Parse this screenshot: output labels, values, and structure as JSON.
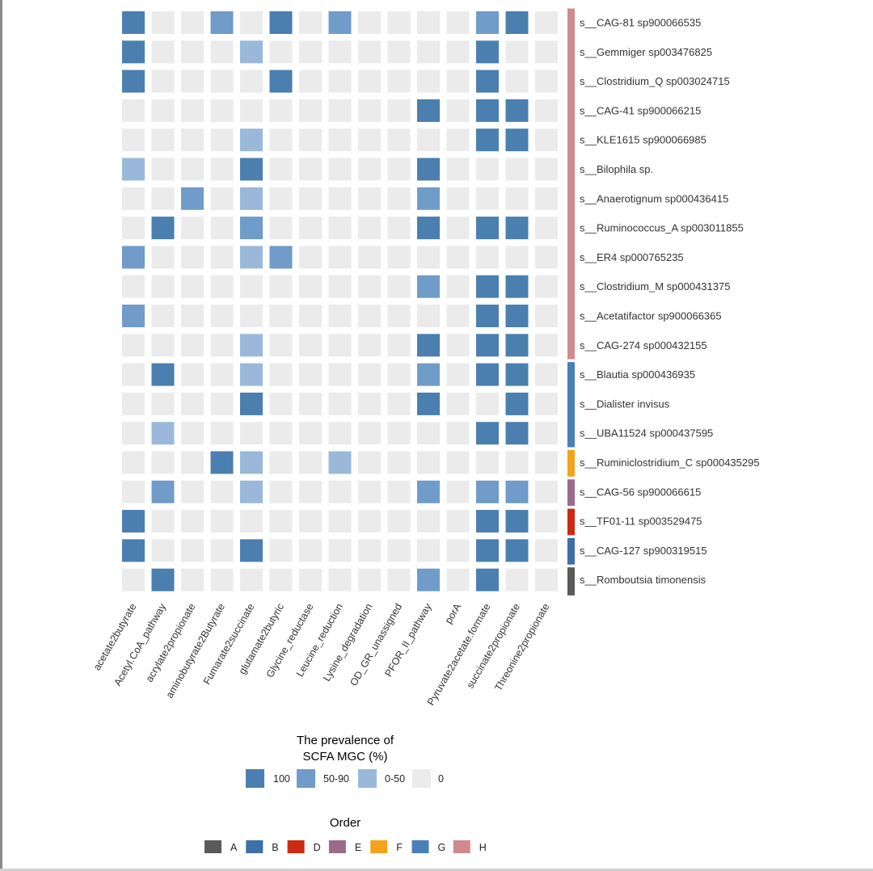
{
  "chart_data": {
    "type": "heatmap",
    "columns": [
      "acetate2butyrate",
      "Acetyl.CoA_pathway",
      "acrylate2propionate",
      "aminobutyrate2Butyrate",
      "Fumarate2succinate",
      "glutamate2butyric",
      "Glycine_reductase",
      "Leucine_reduction",
      "Lysine_degradation",
      "OD_GR_unassigned",
      "PFOR_II_pathway",
      "porA",
      "Pyruvate2acetate.formate",
      "succinate2propionate",
      "Threonine2propionate"
    ],
    "rows": [
      {
        "label": "s__CAG-81 sp900066535",
        "order": "H",
        "values": [
          3,
          0,
          0,
          2,
          0,
          3,
          0,
          2,
          0,
          0,
          0,
          0,
          2,
          3,
          0
        ]
      },
      {
        "label": "s__Gemmiger sp003476825",
        "order": "H",
        "values": [
          3,
          0,
          0,
          0,
          1,
          0,
          0,
          0,
          0,
          0,
          0,
          0,
          3,
          0,
          0
        ]
      },
      {
        "label": "s__Clostridium_Q sp003024715",
        "order": "H",
        "values": [
          3,
          0,
          0,
          0,
          0,
          3,
          0,
          0,
          0,
          0,
          0,
          0,
          3,
          0,
          0
        ]
      },
      {
        "label": "s__CAG-41 sp900066215",
        "order": "H",
        "values": [
          0,
          0,
          0,
          0,
          0,
          0,
          0,
          0,
          0,
          0,
          3,
          0,
          3,
          3,
          0
        ]
      },
      {
        "label": "s__KLE1615 sp900066985",
        "order": "H",
        "values": [
          0,
          0,
          0,
          0,
          1,
          0,
          0,
          0,
          0,
          0,
          0,
          0,
          3,
          3,
          0
        ]
      },
      {
        "label": "s__Bilophila sp.",
        "order": "H",
        "values": [
          1,
          0,
          0,
          0,
          3,
          0,
          0,
          0,
          0,
          0,
          3,
          0,
          0,
          0,
          0
        ]
      },
      {
        "label": "s__Anaerotignum sp000436415",
        "order": "H",
        "values": [
          0,
          0,
          2,
          0,
          1,
          0,
          0,
          0,
          0,
          0,
          2,
          0,
          0,
          0,
          0
        ]
      },
      {
        "label": "s__Ruminococcus_A sp003011855",
        "order": "H",
        "values": [
          0,
          3,
          0,
          0,
          2,
          0,
          0,
          0,
          0,
          0,
          3,
          0,
          3,
          3,
          0
        ]
      },
      {
        "label": "s__ER4 sp000765235",
        "order": "H",
        "values": [
          2,
          0,
          0,
          0,
          1,
          2,
          0,
          0,
          0,
          0,
          0,
          0,
          0,
          0,
          0
        ]
      },
      {
        "label": "s__Clostridium_M sp000431375",
        "order": "H",
        "values": [
          0,
          0,
          0,
          0,
          0,
          0,
          0,
          0,
          0,
          0,
          2,
          0,
          3,
          3,
          0
        ]
      },
      {
        "label": "s__Acetatifactor sp900066365",
        "order": "H",
        "values": [
          2,
          0,
          0,
          0,
          0,
          0,
          0,
          0,
          0,
          0,
          0,
          0,
          3,
          3,
          0
        ]
      },
      {
        "label": "s__CAG-274 sp000432155",
        "order": "H",
        "values": [
          0,
          0,
          0,
          0,
          1,
          0,
          0,
          0,
          0,
          0,
          3,
          0,
          3,
          3,
          0
        ]
      },
      {
        "label": "s__Blautia sp000436935",
        "order": "G",
        "values": [
          0,
          3,
          0,
          0,
          1,
          0,
          0,
          0,
          0,
          0,
          2,
          0,
          3,
          3,
          0
        ]
      },
      {
        "label": "s__Dialister invisus",
        "order": "G",
        "values": [
          0,
          0,
          0,
          0,
          3,
          0,
          0,
          0,
          0,
          0,
          3,
          0,
          0,
          3,
          0
        ]
      },
      {
        "label": "s__UBA11524 sp000437595",
        "order": "G",
        "values": [
          0,
          1,
          0,
          0,
          0,
          0,
          0,
          0,
          0,
          0,
          0,
          0,
          3,
          3,
          0
        ]
      },
      {
        "label": "s__Ruminiclostridium_C sp000435295",
        "order": "F",
        "values": [
          0,
          0,
          0,
          3,
          1,
          0,
          0,
          1,
          0,
          0,
          0,
          0,
          0,
          0,
          0
        ]
      },
      {
        "label": "s__CAG-56 sp900066615",
        "order": "E",
        "values": [
          0,
          2,
          0,
          0,
          1,
          0,
          0,
          0,
          0,
          0,
          2,
          0,
          2,
          2,
          0
        ]
      },
      {
        "label": "s__TF01-11 sp003529475",
        "order": "D",
        "values": [
          3,
          0,
          0,
          0,
          0,
          0,
          0,
          0,
          0,
          0,
          0,
          0,
          3,
          3,
          0
        ]
      },
      {
        "label": "s__CAG-127 sp900319515",
        "order": "B",
        "values": [
          3,
          0,
          0,
          0,
          3,
          0,
          0,
          0,
          0,
          0,
          0,
          0,
          3,
          3,
          0
        ]
      },
      {
        "label": "s__Romboutsia timonensis",
        "order": "A",
        "values": [
          0,
          3,
          0,
          0,
          0,
          0,
          0,
          0,
          0,
          0,
          2,
          0,
          3,
          0,
          0
        ]
      }
    ],
    "value_levels": [
      "0",
      "0-50",
      "50-90",
      "100"
    ],
    "fill_colors": {
      "3": "#4a7fb0",
      "2": "#6f9cc8",
      "1": "#9ab9da",
      "0": "#ebebeb"
    },
    "legend_fill": {
      "title_line1": "The prevalence of",
      "title_line2": "SCFA MGC (%)",
      "items": [
        {
          "label": "100",
          "color": "#4a7fb0"
        },
        {
          "label": "50-90",
          "color": "#6f9cc8"
        },
        {
          "label": "0-50",
          "color": "#9ab9da"
        },
        {
          "label": "0",
          "color": "#ebebeb"
        }
      ]
    },
    "legend_order": {
      "title": "Order",
      "items": [
        {
          "label": "A",
          "color": "#5a5a5a"
        },
        {
          "label": "B",
          "color": "#3d70a8"
        },
        {
          "label": "D",
          "color": "#cc2a12"
        },
        {
          "label": "E",
          "color": "#9b6a8c"
        },
        {
          "label": "F",
          "color": "#f5a21c"
        },
        {
          "label": "G",
          "color": "#4a80b8"
        },
        {
          "label": "H",
          "color": "#d08a8e"
        }
      ]
    }
  }
}
